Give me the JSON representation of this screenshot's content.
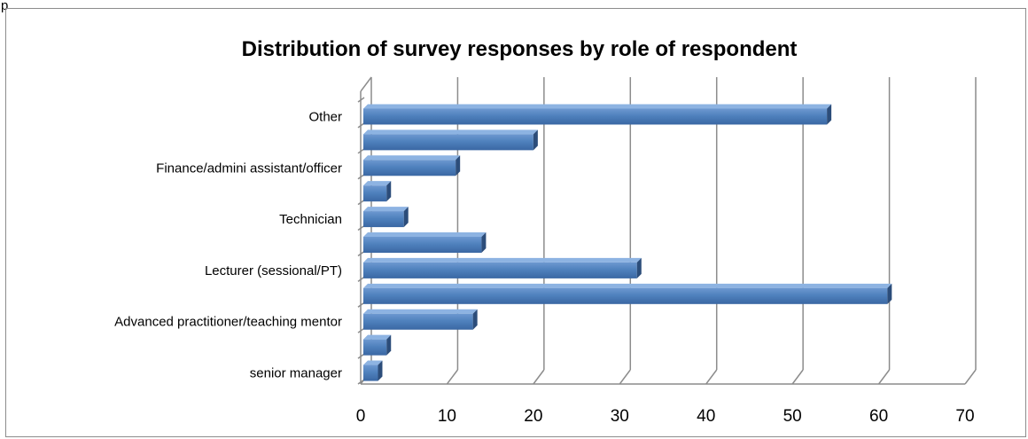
{
  "frame_text": "p",
  "chart_data": {
    "type": "bar",
    "orientation": "horizontal",
    "title": "Distribution of survey responses by role of respondent",
    "xlabel": "",
    "ylabel": "",
    "xlim": [
      0,
      70
    ],
    "xticks": [
      0,
      10,
      20,
      30,
      40,
      50,
      60,
      70
    ],
    "grid": true,
    "legend": "none",
    "bar_color": "#4f81bd",
    "categories": [
      "senior manager",
      "",
      "Advanced practitioner/teaching mentor",
      "",
      "Lecturer (sessional/PT)",
      "",
      "Technician",
      "",
      "Finance/admini assistant/officer",
      "",
      "Other"
    ],
    "values": [
      2,
      3,
      13,
      61,
      32,
      14,
      5,
      3,
      11,
      20,
      54
    ]
  }
}
